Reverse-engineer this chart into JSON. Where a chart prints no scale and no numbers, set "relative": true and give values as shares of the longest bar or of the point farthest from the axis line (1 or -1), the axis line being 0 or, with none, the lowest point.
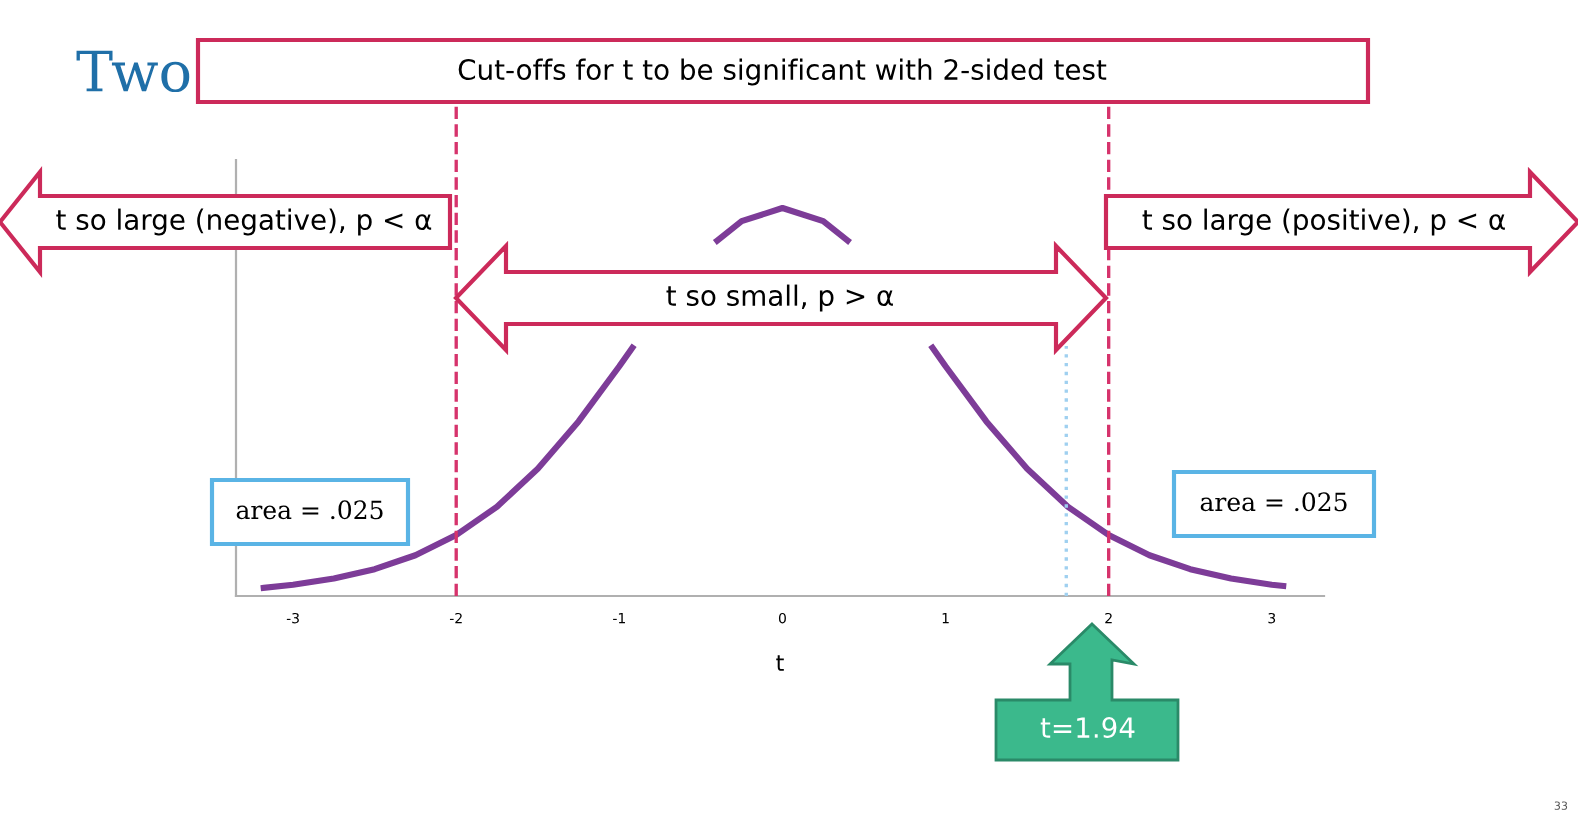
{
  "chart_data": {
    "type": "line",
    "title": "Two",
    "xlabel": "t",
    "relative": true,
    "x": [
      -3.18,
      -3,
      -2.75,
      -2.5,
      -2.25,
      -2,
      -1.75,
      -1.5,
      -1.25,
      -1,
      -0.92,
      -0.75,
      -0.4,
      -0.25,
      0,
      0.25,
      0.4,
      0.75,
      0.92,
      1,
      1.25,
      1.5,
      1.75,
      2,
      2.25,
      2.5,
      2.75,
      3,
      3.07
    ],
    "series": [
      {
        "color": "#7d3c98",
        "values": [
          0.021,
          0.029,
          0.045,
          0.069,
          0.105,
          0.157,
          0.23,
          0.328,
          0.45,
          0.592,
          0.64,
          null,
          0.916,
          0.966,
          1,
          0.966,
          0.916,
          null,
          0.64,
          0.592,
          0.45,
          0.328,
          0.23,
          0.157,
          0.105,
          0.069,
          0.045,
          0.029,
          0.026
        ]
      }
    ],
    "xlim": [
      -3.35,
      3.32
    ],
    "xticks": [
      -3,
      -2,
      -1,
      0,
      1,
      2,
      3
    ],
    "ref_lines": [
      {
        "axis": "x",
        "value": -2,
        "color": "#d6336c",
        "line_style": "dashed"
      },
      {
        "axis": "x",
        "value": 2,
        "color": "#d6336c",
        "line_style": "dashed"
      },
      {
        "axis": "x",
        "value": 1.74,
        "color": "#9fd0f0",
        "line_style": "dotted"
      }
    ],
    "annotations": [
      "Cut-offs for t to be significant with 2-sided test",
      "t so large (negative), p < α",
      "t so small, p > α",
      "t so large (positive), p < α",
      "area = .025",
      "area = .025",
      "t=1.94",
      "33"
    ],
    "grid": false,
    "legend": false
  }
}
